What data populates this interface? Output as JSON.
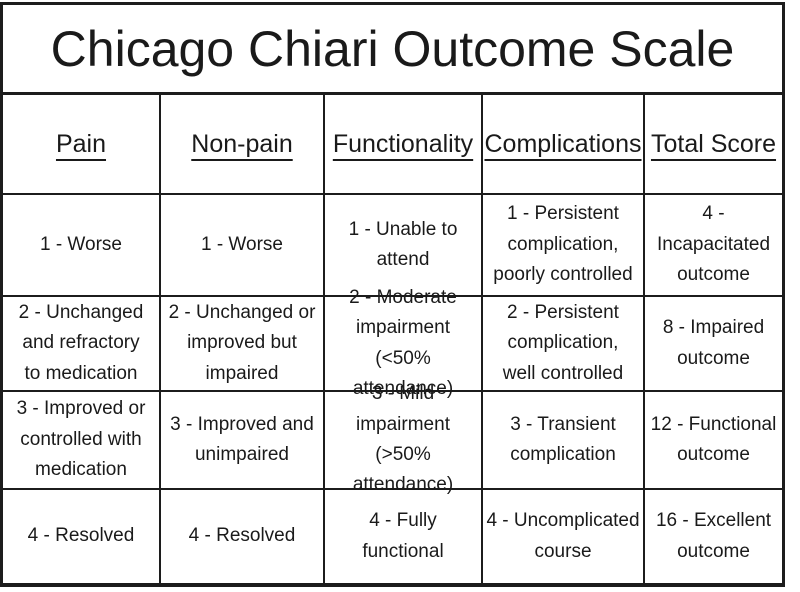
{
  "title": "Chicago Chiari Outcome Scale",
  "table": {
    "headers": [
      "Pain",
      "Non-pain",
      "Functionality",
      "Complications",
      "Total Score"
    ],
    "rows": [
      [
        "1 - Worse",
        "1 - Worse",
        "1 - Unable to\nattend",
        "1 - Persistent\ncomplication,\npoorly controlled",
        "4 - Incapacitated\noutcome"
      ],
      [
        "2 - Unchanged\nand refractory\nto medication",
        "2 - Unchanged or\nimproved but\nimpaired",
        "2 - Moderate\nimpairment (<50%\nattendance)",
        "2 - Persistent\ncomplication,\nwell controlled",
        "8 - Impaired\noutcome"
      ],
      [
        "3 - Improved or\ncontrolled with\nmedication",
        "3 - Improved and\nunimpaired",
        "3 - Mild\nimpairment (>50%\nattendance)",
        "3 - Transient\ncomplication",
        "12 - Functional\noutcome"
      ],
      [
        "4 - Resolved",
        "4 - Resolved",
        "4 - Fully functional",
        "4 - Uncomplicated\ncourse",
        "16 - Excellent\noutcome"
      ]
    ]
  }
}
